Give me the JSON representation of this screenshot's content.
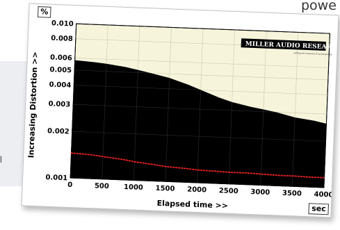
{
  "page": {
    "corner_text": "powe",
    "side_letter": "l"
  },
  "chart_data": {
    "type": "area",
    "logo_main": "MILLER AUDIO RESEARCH",
    "logo_tagline": "setting the measure of sound quality",
    "xlabel": "Elapsed time >>",
    "ylabel": "Increasing Distortion >>",
    "x_unit": "sec",
    "y_unit": "%",
    "y_scale": "log",
    "xlim": [
      0,
      4000
    ],
    "ylim": [
      0.001,
      0.01
    ],
    "x_ticks": [
      0,
      500,
      1000,
      1500,
      2000,
      2500,
      3000,
      3500,
      4000
    ],
    "y_ticks": [
      0.001,
      0.002,
      0.003,
      0.004,
      0.005,
      0.006,
      0.008,
      0.01
    ],
    "y_tick_labels": [
      "0.001",
      "0.002",
      "0.003",
      "0.004",
      "0.005",
      "0.006",
      "0.008",
      "0.010"
    ],
    "grid": true,
    "colors": {
      "background": "#f6f5dc",
      "area": "#000000",
      "grid_light": "#c9c9b0",
      "grid_dark": "#2e2e2e",
      "dots": "#e02020"
    },
    "series": [
      {
        "style": "filled-area",
        "x": [
          0,
          300,
          500,
          800,
          1000,
          1200,
          1500,
          1800,
          2000,
          2300,
          2500,
          2800,
          3000,
          3200,
          3500,
          3800,
          4000
        ],
        "y": [
          0.0058,
          0.0057,
          0.0056,
          0.0054,
          0.0052,
          0.005,
          0.0047,
          0.0043,
          0.004,
          0.0036,
          0.0034,
          0.0032,
          0.0031,
          0.003,
          0.0028,
          0.0027,
          0.0026
        ]
      },
      {
        "style": "dotted-line",
        "x": [
          0,
          300,
          500,
          800,
          1000,
          1300,
          1500,
          1800,
          2000,
          2300,
          2500,
          2800,
          3000,
          3300,
          3500,
          3800,
          4000
        ],
        "y": [
          0.00145,
          0.00143,
          0.0014,
          0.00136,
          0.00132,
          0.00128,
          0.00125,
          0.00123,
          0.00121,
          0.0012,
          0.00119,
          0.00119,
          0.00118,
          0.00117,
          0.00117,
          0.00116,
          0.00116
        ]
      }
    ]
  }
}
